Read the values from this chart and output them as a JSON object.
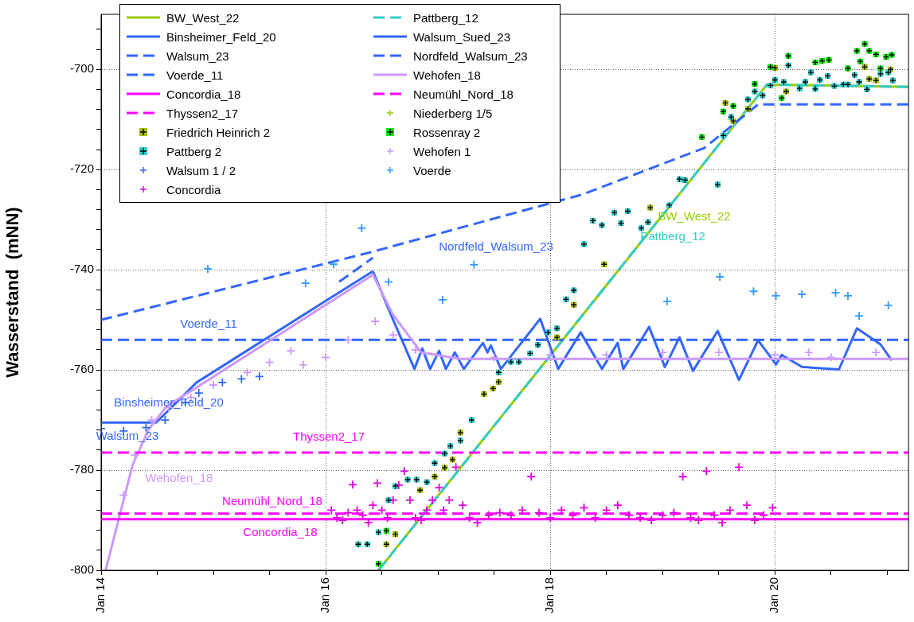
{
  "chart_data": {
    "type": "line",
    "ylabel": "Wasserstand  (mNN)",
    "xlim": [
      "--01-14",
      "--01-21T04:34"
    ],
    "xticks": [
      {
        "value": "--01-14",
        "label": "Jan 14"
      },
      {
        "value": "--01-14T12:00",
        "label": null
      },
      {
        "value": "--01-15",
        "label": null
      },
      {
        "value": "--01-15T12:00",
        "label": null
      },
      {
        "value": "--01-16",
        "label": "Jan 16"
      },
      {
        "value": "--01-16T12:00",
        "label": null
      },
      {
        "value": "--01-17",
        "label": null
      },
      {
        "value": "--01-17T12:00",
        "label": null
      },
      {
        "value": "--01-18",
        "label": "Jan 18"
      },
      {
        "value": "--01-18T12:00",
        "label": null
      },
      {
        "value": "--01-19",
        "label": null
      },
      {
        "value": "--01-19T12:00",
        "label": null
      },
      {
        "value": "--01-20",
        "label": "Jan 20"
      },
      {
        "value": "--01-20T12:00",
        "label": null
      },
      {
        "value": "--01-21",
        "label": null
      }
    ],
    "ylim": [
      -800,
      -689
    ],
    "yticks": [
      -800,
      {
        "value": -796,
        "label": null
      },
      {
        "value": -792,
        "label": null
      },
      {
        "value": -788,
        "label": null
      },
      {
        "value": -784,
        "label": null
      },
      -780,
      {
        "value": -776,
        "label": null
      },
      {
        "value": -772,
        "label": null
      },
      {
        "value": -768,
        "label": null
      },
      {
        "value": -764,
        "label": null
      },
      -760,
      {
        "value": -756,
        "label": null
      },
      {
        "value": -752,
        "label": null
      },
      {
        "value": -748,
        "label": null
      },
      {
        "value": -744,
        "label": null
      },
      -740,
      {
        "value": -736,
        "label": null
      },
      {
        "value": -732,
        "label": null
      },
      {
        "value": -728,
        "label": null
      },
      {
        "value": -724,
        "label": null
      },
      -720,
      {
        "value": -716,
        "label": null
      },
      {
        "value": -712,
        "label": null
      },
      {
        "value": -708,
        "label": null
      },
      {
        "value": -704,
        "label": null
      },
      -700,
      {
        "value": -696,
        "label": null
      },
      {
        "value": -692,
        "label": null
      }
    ],
    "grid": true,
    "legend": "top left",
    "series": [
      {
        "name": "BW_West_22",
        "color": "#99cc00",
        "line_style": "solid",
        "marker": "none",
        "x": [
          "--01-16T11:17",
          "--01-19T22:19",
          "--01-21T04:34"
        ],
        "values": [
          -800,
          -703,
          -703.5
        ]
      },
      {
        "name": "Pattberg_12",
        "color": "#33cccc",
        "line_style": "dashed",
        "marker": "none",
        "x": [
          "--01-16T11:17",
          "--01-19T22:19",
          "--01-21T04:34"
        ],
        "values": [
          -800,
          -703,
          -703.5
        ]
      },
      {
        "name": "Binsheimer_Feld_20",
        "color": "#3366ff",
        "line_style": "solid",
        "marker": "none",
        "x": [
          "--01-14",
          "--01-14T11:46",
          "--01-14T20:24",
          "--01-16",
          "--01-16T10:05"
        ],
        "values": [
          -770.5,
          -770.5,
          -762.5,
          -746.2,
          -740.3
        ]
      },
      {
        "name": "Walsum_Sued_23",
        "color": "#3366ff",
        "line_style": "solid",
        "marker": "none",
        "x": [
          "--01-16T10:05",
          "--01-16T14:24",
          "--01-16T18:58",
          "--01-16T20:38",
          "--01-16T22:19",
          "--01-17T00:14",
          "--01-17T01:41",
          "--01-17T03:36",
          "--01-17T05:31",
          "--01-17T09:36",
          "--01-17T10:34",
          "--01-17T11:17",
          "--01-17T13:26",
          "--01-17T21:50",
          "--01-18T01:41",
          "--01-18T06:29",
          "--01-18T11:02",
          "--01-18T14:24",
          "--01-18T15:36",
          "--01-18T21:07",
          "--01-19T00:29",
          "--01-19T03:36",
          "--01-19T06:29",
          "--01-19T11:46",
          "--01-19T16:19",
          "--01-19T20:24",
          "--01-20T00:14",
          "--01-20T01:26",
          "--01-20T05:46",
          "--01-20T13:41",
          "--01-20T17:31",
          "--01-20T22:34",
          "--01-21T00:58"
        ],
        "values": [
          -740.3,
          -750,
          -759.8,
          -755.7,
          -759.8,
          -756.2,
          -759.8,
          -756.5,
          -759.8,
          -754.6,
          -756.5,
          -755.1,
          -759.8,
          -749.8,
          -759.8,
          -752.5,
          -759.8,
          -754.6,
          -759.8,
          -751.4,
          -759.4,
          -753.5,
          -760.2,
          -752.2,
          -762,
          -754.1,
          -758.9,
          -757,
          -759.4,
          -759.9,
          -751.7,
          -754.9,
          -758.1
        ]
      },
      {
        "name": "Walsum_23",
        "color": "#3366ff",
        "line_style": "dashed",
        "marker": "none",
        "x": [
          "--01-16T02:53",
          "--01-16T10:05"
        ],
        "values": [
          -742.4,
          -737.6
        ]
      },
      {
        "name": "Nordfeld_Walsum_23",
        "color": "#3366ff",
        "line_style": "dashed",
        "marker": "none",
        "x": [
          "--01-14",
          "--01-16T09:36",
          "--01-18T06:43",
          "--01-19T08:53",
          "--01-19T20:24",
          "--01-21T04:34"
        ],
        "values": [
          -750,
          -736.5,
          -725,
          -715.7,
          -707,
          -707
        ]
      },
      {
        "name": "Voerde_11",
        "color": "#3366ff",
        "line_style": "dashed",
        "marker": "none",
        "x": [
          "--01-14",
          "--01-21T04:34"
        ],
        "values": [
          -754,
          -754
        ]
      },
      {
        "name": "Wehofen_18",
        "color": "#cc99ff",
        "line_style": "solid",
        "marker": "none",
        "x": [
          "--01-14T00:58",
          "--01-14T03:50",
          "--01-14T06:43",
          "--01-14T10:05",
          "--01-14T13:55",
          "--01-14T20:24",
          "--01-16",
          "--01-16T10:05",
          "--01-16T14:24",
          "--01-16T20:24",
          "--01-17T04:48",
          "--01-21T04:34"
        ],
        "values": [
          -800,
          -789.5,
          -779,
          -772,
          -767.3,
          -763.5,
          -747,
          -741,
          -749,
          -756.5,
          -757.8,
          -757.8
        ]
      },
      {
        "name": "Concordia_18",
        "color": "#ff00ff",
        "line_style": "solid",
        "marker": "none",
        "x": [
          "--01-14",
          "--01-21T04:34"
        ],
        "values": [
          -789.8,
          -789.8
        ]
      },
      {
        "name": "Neumühl_Nord_18",
        "color": "#ff00ff",
        "line_style": "dashed",
        "marker": "none",
        "x": [
          "--01-14",
          "--01-21T04:34"
        ],
        "values": [
          -788.7,
          -788.7
        ]
      },
      {
        "name": "Thyssen2_17",
        "color": "#ff00ff",
        "line_style": "dashed",
        "marker": "none",
        "x": [
          "--01-14",
          "--01-21T04:34"
        ],
        "values": [
          -776.5,
          -776.5
        ]
      },
      {
        "name": "Niederberg 1/5",
        "type": "scatter",
        "color": "#99cc00",
        "marker": "cross"
      },
      {
        "name": "Friedrich Heinrich 2",
        "type": "scatter",
        "color": "#a8c000",
        "marker": "square",
        "x": [
          "--01-16T12:58",
          "--01-16T14:53",
          "--01-16T20:10",
          "--01-16T23:17",
          "--01-17T01:26",
          "--01-17T03:07",
          "--01-17T04:48",
          "--01-17T09:50",
          "--01-17T11:46",
          "--01-17T12:58",
          "--01-18T01:26",
          "--01-18T05:02",
          "--01-18T11:31",
          "--01-18T21:22",
          "--01-19T13:26",
          "--01-19T15:07",
          "--01-19T18:14",
          "--01-20",
          "--01-20T02:24",
          "--01-20T19:12",
          "--01-20T20:10",
          "--01-20T21:36",
          "--01-21T00:43"
        ],
        "values": [
          -794.8,
          -792.8,
          -784,
          -781.3,
          -779.5,
          -777.9,
          -772.5,
          -764.8,
          -763.7,
          -762.4,
          -753.5,
          -747,
          -738.9,
          -727.6,
          -706.7,
          -710.3,
          -707.9,
          -699.7,
          -704.4,
          -699.5,
          -701.9,
          -702.2,
          -700
        ]
      },
      {
        "name": "Rossenray 2",
        "type": "scatter",
        "color": "#00ee00",
        "marker": "square",
        "x": [
          "--01-16T11:17",
          "--01-16T12:58",
          "--01-19T08:24",
          "--01-19T12:58",
          "--01-19T15:07",
          "--01-19T19:41",
          "--01-19T23:02",
          "--01-20T01:26",
          "--01-20T02:53",
          "--01-20T08:38",
          "--01-20T10:05",
          "--01-20T11:31",
          "--01-20T15:36",
          "--01-20T17:31",
          "--01-20T18:14",
          "--01-20T19:12",
          "--01-20T20:10",
          "--01-20T21:36",
          "--01-20T22:34",
          "--01-20T23:46",
          "--01-21T00:58"
        ],
        "values": [
          -798.7,
          -792.1,
          -713.5,
          -708.4,
          -707.3,
          -702.9,
          -699.5,
          -705.7,
          -697.3,
          -698.6,
          -698.3,
          -698.1,
          -699.8,
          -696.3,
          -698.4,
          -694.9,
          -696.3,
          -697,
          -699.8,
          -697.5,
          -697.1
        ]
      },
      {
        "name": "Pattberg 2",
        "type": "scatter",
        "color": "#33cccc",
        "marker": "square",
        "x": [
          "--01-16T06:58",
          "--01-16T08:53",
          "--01-16T11:17",
          "--01-16T13:26",
          "--01-16T14:53",
          "--01-16T17:31",
          "--01-16T19:26",
          "--01-16T21:36",
          "--01-16T23:17",
          "--01-17T01:26",
          "--01-17T02:38",
          "--01-17T04:48",
          "--01-17T07:12",
          "--01-17T12:58",
          "--01-17T15:36",
          "--01-17T17:17",
          "--01-17T19:41",
          "--01-17T21:22",
          "--01-17T23:31",
          "--01-18T01:26",
          "--01-18T03:22",
          "--01-18T05:02",
          "--01-18T07:12",
          "--01-18T09:07",
          "--01-18T11:02",
          "--01-18T13:41",
          "--01-18T15:07",
          "--01-18T16:34",
          "--01-18T19:26",
          "--01-18T20:53",
          "--01-19T01:26",
          "--01-19T03:36",
          "--01-19T04:48",
          "--01-19T11:46",
          "--01-19T12:58",
          "--01-19T14:38",
          "--01-19T18:14",
          "--01-19T19:41",
          "--01-19T21:22",
          "--01-19T23:02",
          "--01-20",
          "--01-20T01:55",
          "--01-20T02:53",
          "--01-20T05:17",
          "--01-20T06:29",
          "--01-20T07:41",
          "--01-20T08:38",
          "--01-20T09:36",
          "--01-20T11:17",
          "--01-20T12:43",
          "--01-20T14:38",
          "--01-20T15:36",
          "--01-20T17:02",
          "--01-20T18:00",
          "--01-20T19:41",
          "--01-20T22:34",
          "--01-21T00:14",
          "--01-21T01:12"
        ],
        "values": [
          -794.8,
          -794.8,
          -792.4,
          -786,
          -783.2,
          -781.9,
          -781.9,
          -782.4,
          -778.6,
          -776.7,
          -775.2,
          -774.1,
          -770,
          -760.5,
          -758.4,
          -758.4,
          -756.7,
          -755,
          -752.5,
          -751.7,
          -745.9,
          -744.1,
          -734.9,
          -730.2,
          -731.1,
          -728.6,
          -730.7,
          -728.3,
          -731.7,
          -730.5,
          -727.1,
          -721.9,
          -722.1,
          -723,
          -713.2,
          -709.5,
          -706,
          -704.4,
          -705.2,
          -703.2,
          -702.1,
          -702.5,
          -699.2,
          -703.8,
          -702.5,
          -700.6,
          -703.9,
          -702.1,
          -701.3,
          -703.3,
          -703,
          -703,
          -701.1,
          -702.5,
          -704,
          -700.9,
          -700.6,
          -702.2
        ]
      },
      {
        "name": "Wehofen 1",
        "type": "scatter",
        "color": "#cc99ff",
        "marker": "cross",
        "x": [
          "--01-14T04:48",
          "--01-14T07:12",
          "--01-14T10:48",
          "--01-14T14:24",
          "--01-14T19:12",
          "--01-15",
          "--01-15T07:12",
          "--01-15T12:00",
          "--01-15T16:34",
          "--01-15T19:12",
          "--01-16",
          "--01-16T04:48",
          "--01-16T10:34",
          "--01-16T14:24",
          "--01-16T19:12",
          "--01-17T12:00",
          "--01-18",
          "--01-18T12:00",
          "--01-19",
          "--01-19T12:00",
          "--01-20",
          "--01-20T07:12",
          "--01-20T12:00",
          "--01-20T21:36"
        ],
        "values": [
          -785,
          -777,
          -770,
          -767.5,
          -765.5,
          -763,
          -760.5,
          -758.5,
          -756.2,
          -759,
          -757.5,
          -754,
          -750.3,
          -753,
          -756,
          -757.5,
          -757,
          -757,
          -756.5,
          -756.5,
          -757,
          -756.5,
          -757.5,
          -756.5
        ]
      },
      {
        "name": "Walsum 1 / 2",
        "type": "scatter",
        "color": "#3366ff",
        "marker": "cross",
        "x": [
          "--01-14",
          "--01-14T04:48",
          "--01-14T09:36",
          "--01-14T13:41",
          "--01-14T18:00",
          "--01-14T20:53",
          "--01-15T01:55",
          "--01-15T06:00",
          "--01-15T09:50"
        ],
        "values": [
          -771.7,
          -772.2,
          -771.5,
          -770,
          -766.5,
          -764.6,
          -762.5,
          -761.8,
          -761.3
        ]
      },
      {
        "name": "Voerde",
        "type": "scatter",
        "color": "#3399ff",
        "marker": "cross",
        "x": [
          "--01-14T22:48",
          "--01-15T19:41",
          "--01-16T01:41",
          "--01-16T07:41",
          "--01-16T13:26",
          "--01-17T00:58",
          "--01-17T07:41",
          "--01-19T00:58",
          "--01-19T12:14",
          "--01-19T19:26",
          "--01-20T00:14",
          "--01-20T05:46",
          "--01-20T12:58",
          "--01-20T15:36",
          "--01-20T18:00",
          "--01-21T00:14"
        ],
        "values": [
          -739.8,
          -742.7,
          -738.9,
          -731.7,
          -742.4,
          -746,
          -739,
          -746.3,
          -741.4,
          -744.3,
          -745.2,
          -744.9,
          -744.6,
          -745.2,
          -749.2,
          -747.1
        ]
      },
      {
        "name": "Concordia",
        "type": "scatter",
        "color": "#e000e0",
        "marker": "cross",
        "x": [
          "--01-16T01:12",
          "--01-16T02:24",
          "--01-16T03:36",
          "--01-16T04:48",
          "--01-16T05:46",
          "--01-16T06:43",
          "--01-16T07:55",
          "--01-16T09:07",
          "--01-16T10:05",
          "--01-16T11:02",
          "--01-16T12:00",
          "--01-16T13:12",
          "--01-16T14:24",
          "--01-16T15:36",
          "--01-16T16:48",
          "--01-16T18:00",
          "--01-16T19:12",
          "--01-16T20:24",
          "--01-16T21:36",
          "--01-16T22:48",
          "--01-17T00:14",
          "--01-17T01:12",
          "--01-17T02:24",
          "--01-17T03:50",
          "--01-17T05:17",
          "--01-17T06:43",
          "--01-17T08:24",
          "--01-17T10:48",
          "--01-17T13:12",
          "--01-17T15:36",
          "--01-17T18:00",
          "--01-17T19:55",
          "--01-17T21:36",
          "--01-18",
          "--01-18T02:24",
          "--01-18T04:48",
          "--01-18T07:12",
          "--01-18T09:36",
          "--01-18T12:00",
          "--01-18T14:24",
          "--01-18T16:48",
          "--01-18T19:12",
          "--01-18T21:36",
          "--01-19",
          "--01-19T02:24",
          "--01-19T04:19",
          "--01-19T06:00",
          "--01-19T07:41",
          "--01-19T09:22",
          "--01-19T11:02",
          "--01-19T12:43",
          "--01-19T14:24",
          "--01-19T16:19",
          "--01-19T18:00",
          "--01-19T19:41",
          "--01-19T21:36",
          "--01-19T23:31"
        ],
        "values": [
          -788,
          -789.5,
          -790,
          -788.5,
          -782.9,
          -788,
          -789,
          -790.5,
          -787,
          -782.6,
          -788,
          -789.5,
          -786,
          -783,
          -780.2,
          -786,
          -789.5,
          -790,
          -788,
          -786,
          -783.5,
          -788,
          -786,
          -779.4,
          -787,
          -789.5,
          -790.5,
          -789,
          -788.5,
          -789,
          -788,
          -781.3,
          -788.5,
          -789.5,
          -788,
          -789,
          -787.5,
          -789.5,
          -788,
          -787,
          -789,
          -789.5,
          -790,
          -789,
          -788.5,
          -781.3,
          -789.5,
          -790,
          -780.2,
          -789,
          -790.5,
          -788,
          -779.4,
          -787,
          -790,
          -789,
          -787.5
        ]
      }
    ],
    "annotations": [
      "BW_West_22",
      "Pattberg_12",
      "Nordfeld_Walsum_23",
      "Voerde_11",
      "Binsheimer_Feld_20",
      "Walsum_23",
      "Thyssen2_17",
      "Wehofen_18",
      "Neumühl_Nord_18",
      "Concordia_18"
    ]
  }
}
